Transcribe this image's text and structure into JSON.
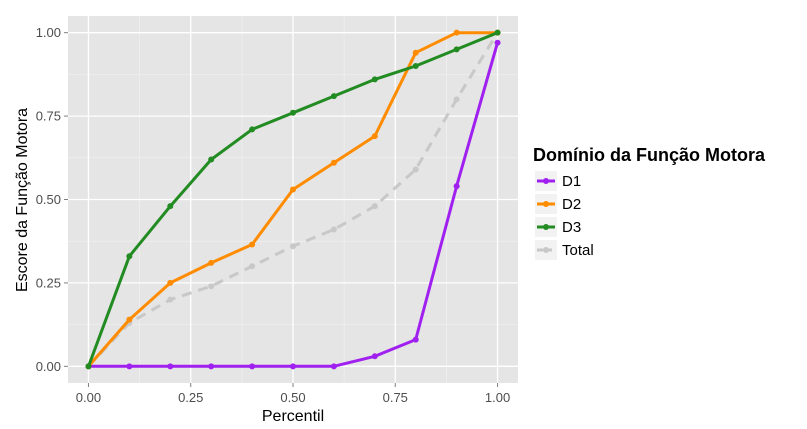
{
  "chart_data": {
    "type": "line",
    "title": "",
    "xlabel": "Percentil",
    "ylabel": "Escore da Função Motora",
    "xlim": [
      -0.05,
      1.05
    ],
    "ylim": [
      -0.05,
      1.05
    ],
    "x_ticks": [
      0,
      0.25,
      0.5,
      0.75,
      1
    ],
    "x_tick_labels": [
      "0.00",
      "0.25",
      "0.50",
      "0.75",
      "1.00"
    ],
    "y_ticks": [
      0,
      0.25,
      0.5,
      0.75,
      1
    ],
    "y_tick_labels": [
      "0.00",
      "0.25",
      "0.50",
      "0.75",
      "1.00"
    ],
    "x": [
      0,
      0.1,
      0.2,
      0.3,
      0.4,
      0.5,
      0.6,
      0.7,
      0.8,
      0.9,
      1.0
    ],
    "grid": true,
    "legend": {
      "title": "Domínio da Função Motora",
      "position": "right"
    },
    "series": [
      {
        "name": "D1",
        "color": "#a020f0",
        "style": "solid",
        "points": [
          [
            0,
            0
          ],
          [
            0.1,
            0
          ],
          [
            0.2,
            0
          ],
          [
            0.3,
            0
          ],
          [
            0.4,
            0
          ],
          [
            0.5,
            0
          ],
          [
            0.6,
            0
          ],
          [
            0.7,
            0.03
          ],
          [
            0.8,
            0.08
          ],
          [
            0.9,
            0.54
          ],
          [
            1.0,
            0.97
          ]
        ]
      },
      {
        "name": "D2",
        "color": "#ff8c00",
        "style": "solid",
        "points": [
          [
            0,
            0
          ],
          [
            0.1,
            0.14
          ],
          [
            0.2,
            0.25
          ],
          [
            0.3,
            0.31
          ],
          [
            0.4,
            0.365
          ],
          [
            0.5,
            0.53
          ],
          [
            0.6,
            0.61
          ],
          [
            0.7,
            0.69
          ],
          [
            0.8,
            0.94
          ],
          [
            0.9,
            1.0
          ],
          [
            1.0,
            1.0
          ]
        ]
      },
      {
        "name": "D3",
        "color": "#228b22",
        "style": "solid",
        "points": [
          [
            0,
            0
          ],
          [
            0.1,
            0.33
          ],
          [
            0.2,
            0.48
          ],
          [
            0.3,
            0.62
          ],
          [
            0.4,
            0.71
          ],
          [
            0.5,
            0.76
          ],
          [
            0.6,
            0.81
          ],
          [
            0.7,
            0.86
          ],
          [
            0.8,
            0.9
          ],
          [
            0.9,
            0.95
          ],
          [
            1.0,
            1.0
          ]
        ]
      },
      {
        "name": "Total",
        "color": "#c8c8c8",
        "style": "dashed",
        "points": [
          [
            0,
            0
          ],
          [
            0.1,
            0.13
          ],
          [
            0.2,
            0.2
          ],
          [
            0.3,
            0.24
          ],
          [
            0.4,
            0.3
          ],
          [
            0.5,
            0.36
          ],
          [
            0.6,
            0.41
          ],
          [
            0.7,
            0.48
          ],
          [
            0.8,
            0.59
          ],
          [
            0.9,
            0.8
          ],
          [
            1.0,
            1.0
          ]
        ]
      }
    ]
  }
}
